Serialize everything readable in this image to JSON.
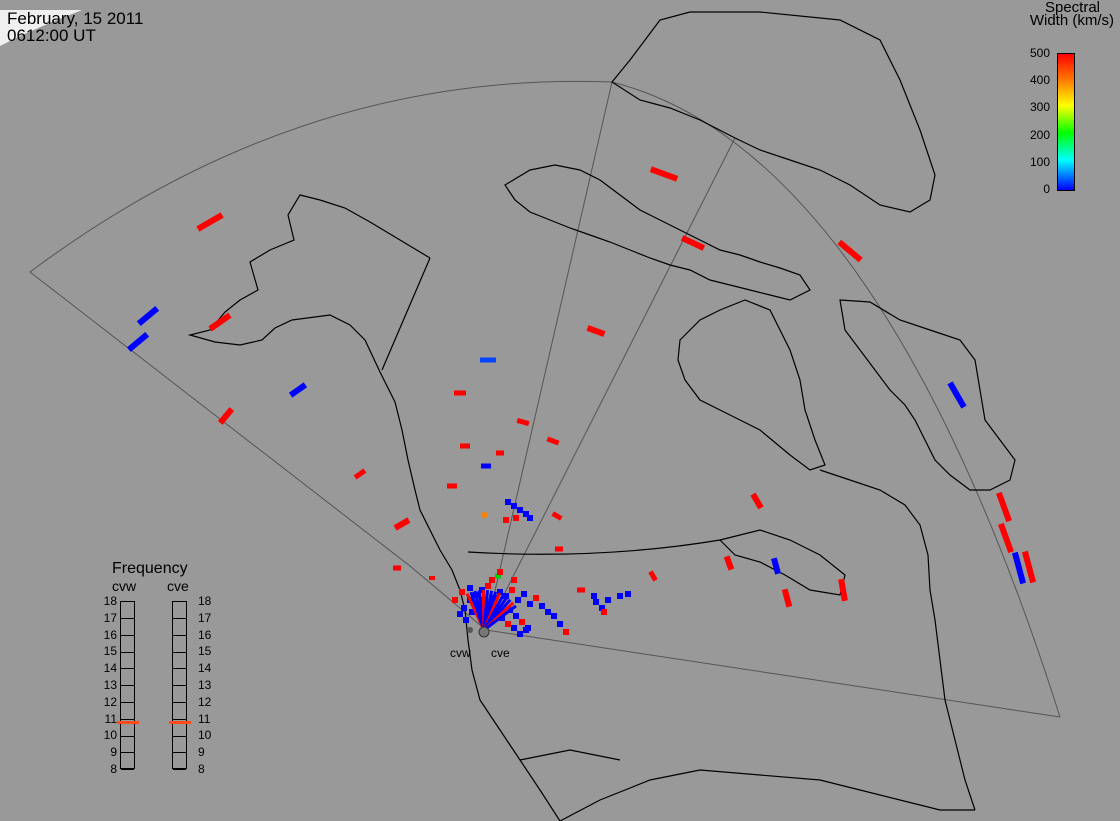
{
  "header": {
    "date": "February, 15 2011",
    "time": "0612:00 UT"
  },
  "colorbar": {
    "title_line1": "Spectral",
    "title_line2": "Width (km/s)",
    "ticks": [
      "500",
      "400",
      "300",
      "200",
      "100",
      "0"
    ],
    "min": 0,
    "max": 500,
    "colors": [
      "#0000ff",
      "#00ffff",
      "#00ff00",
      "#ffff00",
      "#ff8000",
      "#ff0000"
    ]
  },
  "frequency_panel": {
    "title": "Frequency",
    "radars": [
      "cvw",
      "cve"
    ],
    "scale": [
      "18",
      "17",
      "16",
      "15",
      "14",
      "13",
      "12",
      "11",
      "10",
      "9",
      "8"
    ],
    "current_mhz": [
      10.8,
      10.8
    ],
    "marker_color": "#ff4a1a"
  },
  "sites": [
    "cvw",
    "cve"
  ],
  "colors": {
    "background": "#999999",
    "coast": "#000000",
    "fov_line": "#555555",
    "low_width": "#0000ff",
    "high_width": "#ff0000",
    "mid_width": "#ff8000",
    "green_width": "#00cc00",
    "daylight": "#f0f0f0"
  }
}
